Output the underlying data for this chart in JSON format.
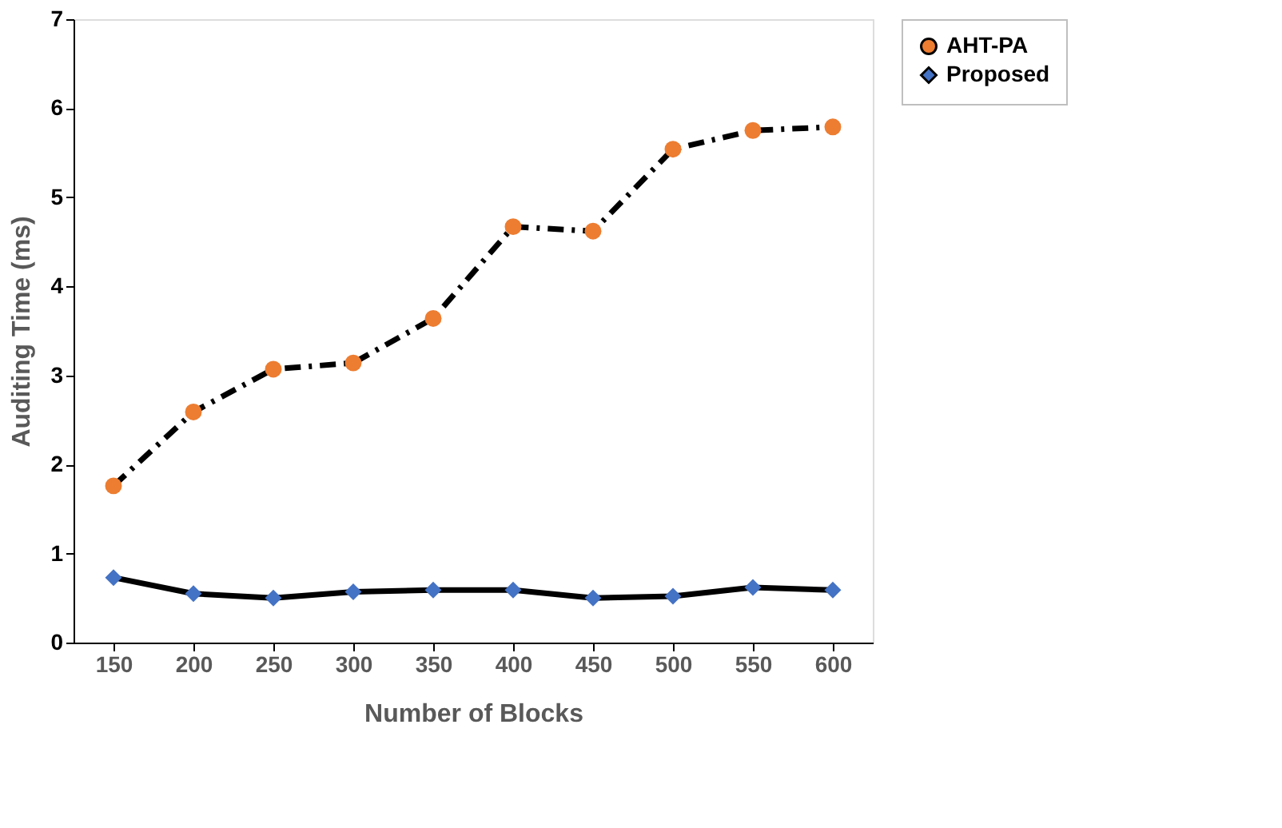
{
  "chart_data": {
    "type": "line",
    "xlabel": "Number of Blocks",
    "ylabel": "Auditing Time (ms)",
    "categories": [
      "150",
      "200",
      "250",
      "300",
      "350",
      "400",
      "450",
      "500",
      "550",
      "600"
    ],
    "series": [
      {
        "name": "AHT-PA",
        "color": "#ed7d31",
        "marker": "circle",
        "line_style": "dashdot",
        "values": [
          1.76,
          2.59,
          3.07,
          3.14,
          3.64,
          4.67,
          4.62,
          5.54,
          5.75,
          5.79
        ]
      },
      {
        "name": "Proposed",
        "color": "#4472c4",
        "marker": "diamond",
        "line_style": "solid",
        "values": [
          0.73,
          0.55,
          0.5,
          0.57,
          0.59,
          0.59,
          0.5,
          0.52,
          0.62,
          0.59
        ]
      }
    ],
    "ylim": [
      0,
      7
    ],
    "yticks": [
      0,
      1,
      2,
      3,
      4,
      5,
      6,
      7
    ],
    "grid": false,
    "legend": "top right"
  }
}
